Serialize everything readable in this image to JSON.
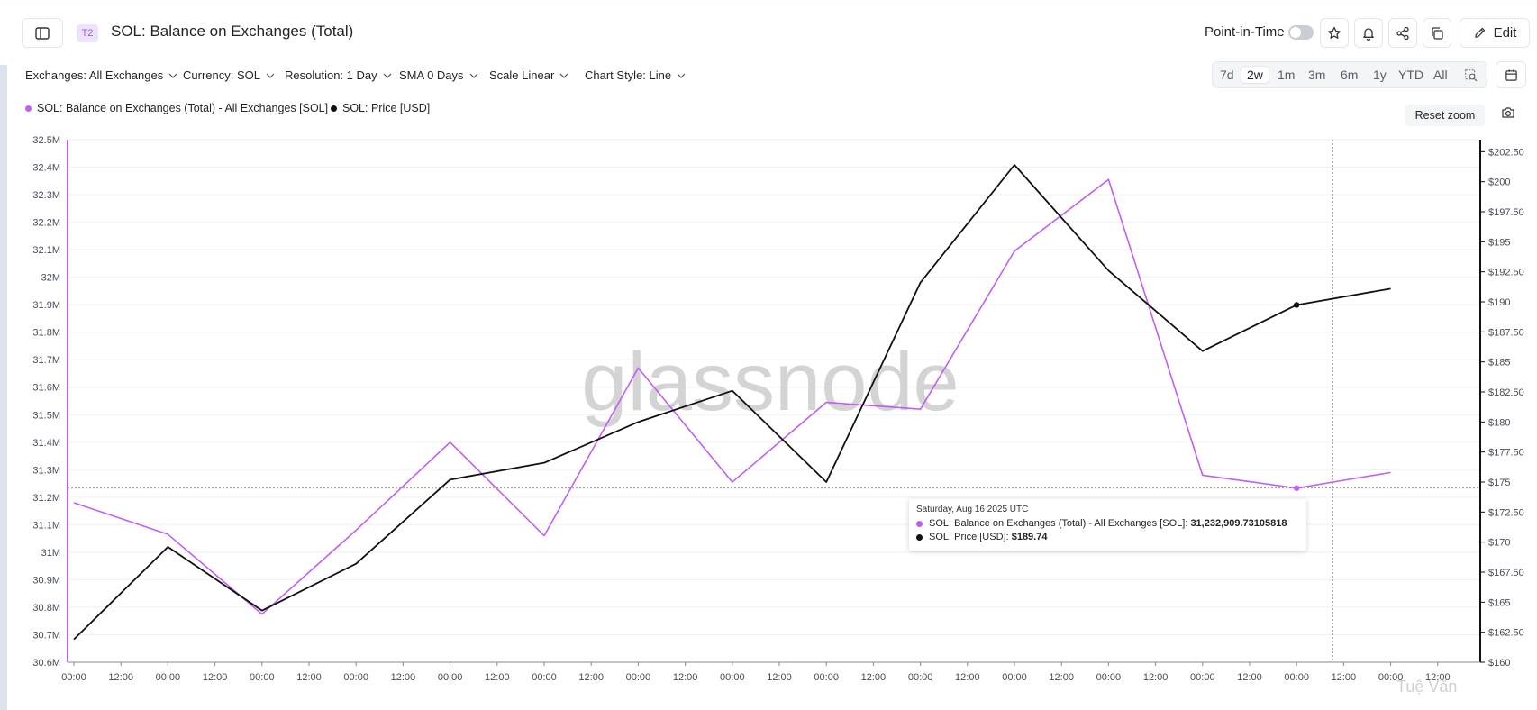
{
  "header": {
    "badge": "T2",
    "title": "SOL: Balance on Exchanges (Total)",
    "point_in_time_label": "Point-in-Time",
    "edit_label": "Edit"
  },
  "controls": {
    "exchanges": "Exchanges: All Exchanges",
    "currency": "Currency: SOL",
    "resolution": "Resolution: 1 Day",
    "sma": "SMA 0 Days",
    "scale": "Scale Linear",
    "chart_style": "Chart Style: Line"
  },
  "range_buttons": [
    "7d",
    "2w",
    "1m",
    "3m",
    "6m",
    "1y",
    "YTD",
    "All"
  ],
  "active_range": "2w",
  "reset_zoom_label": "Reset zoom",
  "credit": "Tuệ Văn",
  "colors": {
    "balance": "#c15ff0",
    "price": "#111111",
    "accent": "#9a5fd0"
  },
  "tooltip": {
    "date": "Saturday, Aug 16 2025 UTC",
    "balance_label": "SOL: Balance on Exchanges (Total) - All Exchanges [SOL]: ",
    "balance_value": "31,232,909.73105818",
    "price_label": "SOL: Price [USD]: ",
    "price_value": "$189.74"
  },
  "chart_data": {
    "type": "line",
    "watermark": "glassnode",
    "legend": [
      "SOL: Balance on Exchanges (Total) - All Exchanges [SOL]",
      "SOL: Price [USD]"
    ],
    "x_tick_labels": [
      "00:00",
      "12:00",
      "00:00",
      "12:00",
      "00:00",
      "12:00",
      "00:00",
      "12:00",
      "00:00",
      "12:00",
      "00:00",
      "12:00",
      "00:00",
      "12:00",
      "00:00",
      "12:00",
      "00:00",
      "12:00",
      "00:00",
      "12:00",
      "00:00",
      "12:00",
      "00:00",
      "12:00",
      "00:00",
      "12:00",
      "00:00",
      "12:00",
      "00:00",
      "12:00"
    ],
    "y_left": {
      "ticks": [
        "30.6M",
        "30.7M",
        "30.8M",
        "30.9M",
        "31M",
        "31.1M",
        "31.2M",
        "31.3M",
        "31.4M",
        "31.5M",
        "31.6M",
        "31.7M",
        "31.8M",
        "31.9M",
        "32M",
        "32.1M",
        "32.2M",
        "32.3M",
        "32.4M",
        "32.5M"
      ],
      "range": [
        30.6,
        32.5
      ],
      "unit": "M"
    },
    "y_right": {
      "ticks": [
        "$160",
        "$162.50",
        "$165",
        "$167.50",
        "$170",
        "$172.50",
        "$175",
        "$177.50",
        "$180",
        "$182.50",
        "$185",
        "$187.50",
        "$190",
        "$192.50",
        "$195",
        "$197.50",
        "$200",
        "$202.50"
      ],
      "range": [
        160,
        203.5
      ]
    },
    "series": [
      {
        "name": "SOL: Balance on Exchanges (Total) - All Exchanges [SOL]",
        "axis": "left",
        "highlight_index": 13,
        "values": [
          31.18,
          31.065,
          30.775,
          31.08,
          31.4,
          31.06,
          31.67,
          31.255,
          31.545,
          31.52,
          32.095,
          32.355,
          31.28,
          31.233,
          31.29
        ]
      },
      {
        "name": "SOL: Price [USD]",
        "axis": "right",
        "highlight_index": 13,
        "values": [
          161.9,
          169.6,
          164.3,
          168.2,
          175.2,
          176.6,
          180.0,
          182.6,
          175.0,
          191.6,
          201.4,
          192.6,
          185.9,
          189.74,
          191.1
        ]
      }
    ],
    "grid": true
  }
}
